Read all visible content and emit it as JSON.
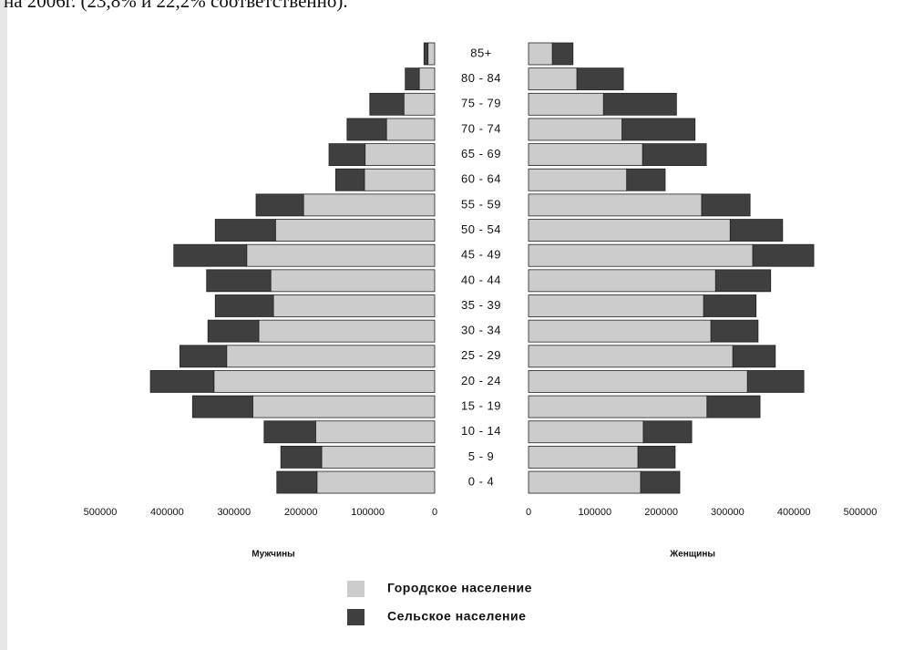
{
  "page_text": "на 2006г. (23,8% и 22,2% соответственно).",
  "chart_data": {
    "type": "population_pyramid",
    "categories": [
      "85+",
      "80 - 84",
      "75 - 79",
      "70 - 74",
      "65 - 69",
      "60 - 64",
      "55 - 59",
      "50 - 54",
      "45 - 49",
      "40 - 44",
      "35 - 39",
      "30 - 34",
      "25 - 29",
      "20 - 24",
      "15 - 19",
      "10 - 14",
      "5 - 9",
      "0 - 4"
    ],
    "sides": [
      {
        "key": "male",
        "label": "Мужчины",
        "xlim": [
          0,
          500000
        ],
        "xticks": [
          0,
          100000,
          200000,
          300000,
          400000,
          500000
        ]
      },
      {
        "key": "female",
        "label": "Женщины",
        "xlim": [
          0,
          500000
        ],
        "xticks": [
          0,
          100000,
          200000,
          300000,
          400000,
          500000
        ]
      }
    ],
    "series": [
      {
        "name": "Городское население",
        "color": "#cccccc",
        "male": [
          10000,
          23000,
          46000,
          72000,
          104000,
          105000,
          196000,
          238000,
          281000,
          245000,
          241000,
          263000,
          311000,
          330000,
          272000,
          178000,
          169000,
          176000
        ],
        "female": [
          36000,
          73000,
          113000,
          141000,
          172000,
          148000,
          261000,
          304000,
          338000,
          282000,
          264000,
          275000,
          308000,
          330000,
          269000,
          173000,
          165000,
          169000
        ]
      },
      {
        "name": "Сельское население",
        "color": "#3f3f3f",
        "male": [
          6000,
          21000,
          51000,
          59000,
          54000,
          43000,
          71000,
          90000,
          109000,
          96000,
          87000,
          76000,
          70000,
          95000,
          90000,
          77000,
          61000,
          60000
        ],
        "female": [
          31000,
          70000,
          110000,
          110000,
          96000,
          58000,
          73000,
          79000,
          92000,
          83000,
          79000,
          71000,
          64000,
          85000,
          80000,
          73000,
          56000,
          59000
        ]
      }
    ]
  }
}
